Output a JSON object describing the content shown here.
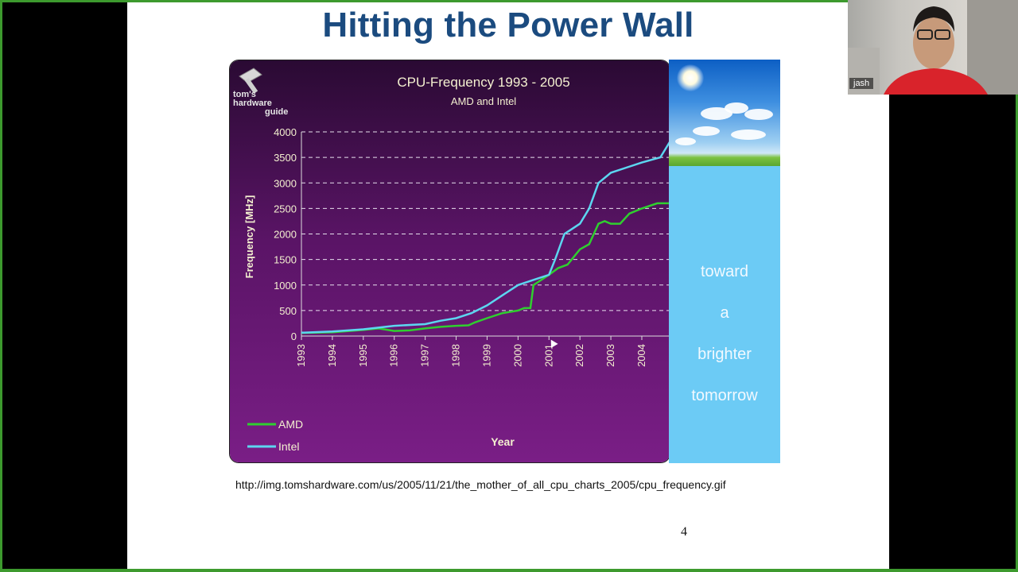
{
  "slide": {
    "title": "Hitting the Power Wall",
    "source_url": "http://img.tomshardware.com/us/2005/11/21/the_mother_of_all_cpu_charts_2005/cpu_frequency.gif",
    "page_number": "4",
    "side_panel": {
      "lines": [
        "toward",
        "a",
        "brighter",
        "tomorrow"
      ]
    }
  },
  "logo": {
    "line1": "tom's",
    "line2": "hardware",
    "line3": "guide"
  },
  "webcam": {
    "participant_name": "jash"
  },
  "colors": {
    "title": "#1b4b7f",
    "chart_bg_top": "#2a0a33",
    "chart_bg_bottom": "#7a1e86",
    "amd": "#2fcf2f",
    "intel": "#5cd6f0",
    "panel": "#6ccbf5",
    "frame": "#3d9a2e"
  },
  "chart_data": {
    "type": "line",
    "title": "CPU-Frequency 1993 - 2005",
    "subtitle": "AMD and Intel",
    "xlabel": "Year",
    "ylabel": "Frequency [MHz]",
    "xlim": [
      1993,
      2004.9
    ],
    "ylim": [
      0,
      4000
    ],
    "x_ticks": [
      "1993",
      "1994",
      "1995",
      "1996",
      "1997",
      "1998",
      "1999",
      "2000",
      "2001",
      "2002",
      "2003",
      "2004"
    ],
    "y_ticks": [
      0,
      500,
      1000,
      1500,
      2000,
      2500,
      3000,
      3500,
      4000
    ],
    "grid": true,
    "legend": "bottom-left",
    "series": [
      {
        "name": "AMD",
        "points": [
          [
            1993,
            60
          ],
          [
            1994,
            75
          ],
          [
            1995,
            120
          ],
          [
            1995.5,
            150
          ],
          [
            1996,
            100
          ],
          [
            1996.5,
            110
          ],
          [
            1997,
            150
          ],
          [
            1997.5,
            180
          ],
          [
            1998,
            200
          ],
          [
            1998.4,
            210
          ],
          [
            1998.6,
            266
          ],
          [
            1999,
            350
          ],
          [
            1999.5,
            450
          ],
          [
            2000,
            500
          ],
          [
            2000.2,
            550
          ],
          [
            2000.4,
            550
          ],
          [
            2000.5,
            1000
          ],
          [
            2001,
            1200
          ],
          [
            2001.3,
            1333
          ],
          [
            2001.6,
            1400
          ],
          [
            2002,
            1700
          ],
          [
            2002.3,
            1800
          ],
          [
            2002.6,
            2200
          ],
          [
            2002.8,
            2250
          ],
          [
            2003,
            2200
          ],
          [
            2003.3,
            2200
          ],
          [
            2003.6,
            2400
          ],
          [
            2004,
            2500
          ],
          [
            2004.5,
            2600
          ],
          [
            2004.9,
            2600
          ]
        ]
      },
      {
        "name": "Intel",
        "points": [
          [
            1993,
            66
          ],
          [
            1994,
            90
          ],
          [
            1995,
            133
          ],
          [
            1996,
            200
          ],
          [
            1997,
            233
          ],
          [
            1997.5,
            300
          ],
          [
            1998,
            350
          ],
          [
            1998.5,
            450
          ],
          [
            1999,
            600
          ],
          [
            1999.5,
            800
          ],
          [
            2000,
            1000
          ],
          [
            2000.5,
            1100
          ],
          [
            2001,
            1200
          ],
          [
            2001.2,
            1500
          ],
          [
            2001.5,
            2000
          ],
          [
            2002,
            2200
          ],
          [
            2002.3,
            2500
          ],
          [
            2002.6,
            3000
          ],
          [
            2003,
            3200
          ],
          [
            2003.5,
            3300
          ],
          [
            2004,
            3400
          ],
          [
            2004.6,
            3500
          ],
          [
            2004.9,
            3800
          ]
        ]
      }
    ]
  }
}
